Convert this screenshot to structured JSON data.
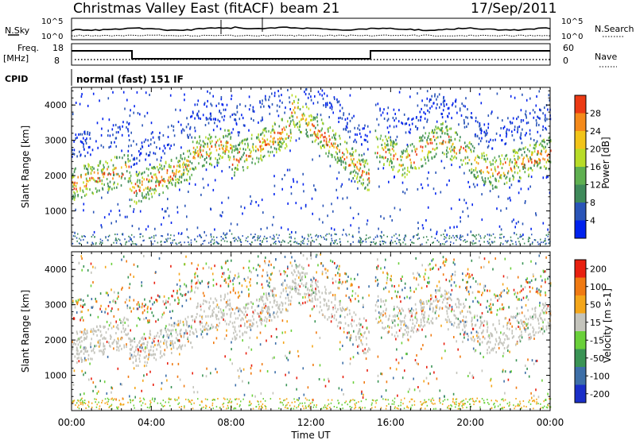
{
  "header": {
    "title": "Christmas Valley East (fitACF)",
    "beam": "beam 21",
    "date": "17/Sep/2011"
  },
  "panels": {
    "nsky_label": "N.Sky",
    "nsearch_label": "N.Search",
    "freq_label_1": "Freq.",
    "freq_label_2": "[MHz]",
    "nave_label": "Nave",
    "cpid_label": "CPID",
    "mode_text": "normal (fast) 151 IF",
    "nsky_ticks": [
      "10^5",
      "10^0"
    ],
    "nsearch_ticks": [
      "10^5",
      "10^0"
    ],
    "freq_ticks": [
      "18",
      "8"
    ],
    "nave_ticks": [
      "60",
      "0"
    ]
  },
  "chart_data": [
    {
      "type": "heatmap",
      "title": "",
      "xlabel": "",
      "ylabel": "Slant Range [km]",
      "ylim": [
        0,
        4500
      ],
      "y_ticks": [
        1000,
        2000,
        3000,
        4000
      ],
      "colorbar": {
        "label": "Power [dB]",
        "ticks": [
          "4",
          "8",
          "12",
          "16",
          "20",
          "24",
          "28"
        ],
        "colors": [
          "#0022ee",
          "#2a55b8",
          "#3f8a5a",
          "#5fb050",
          "#b8dc28",
          "#f2c419",
          "#f58a1a",
          "#ec3a14"
        ]
      }
    },
    {
      "type": "heatmap",
      "title": "",
      "xlabel": "Time UT",
      "ylabel": "Slant Range [km]",
      "ylim": [
        0,
        4500
      ],
      "y_ticks": [
        1000,
        2000,
        3000,
        4000
      ],
      "x_ticks": [
        "00:00",
        "04:00",
        "08:00",
        "12:00",
        "16:00",
        "20:00",
        "00:00"
      ],
      "colorbar": {
        "label": "Velocity [m s-1]",
        "ticks": [
          "200",
          "100",
          "50",
          "15",
          "-15",
          "-50",
          "-100",
          "-200"
        ],
        "colors": [
          "#1a2fc8",
          "#3d6fa8",
          "#3a9455",
          "#6ad03a",
          "#c4c4bc",
          "#f4a61a",
          "#f07a12",
          "#e82010"
        ]
      }
    }
  ]
}
